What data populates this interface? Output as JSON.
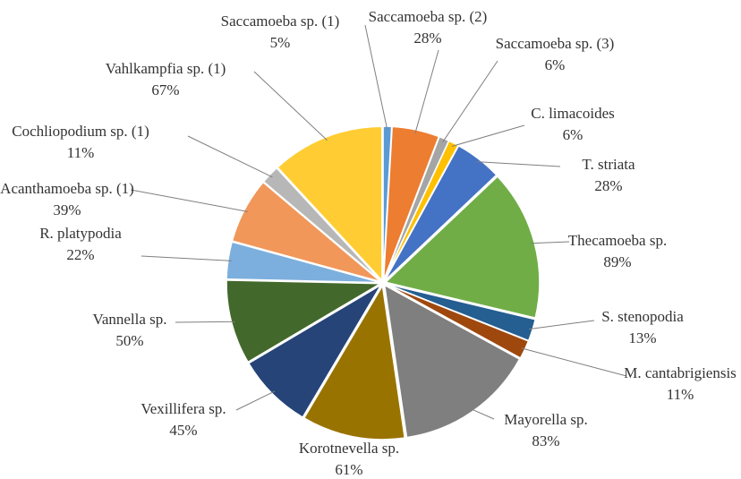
{
  "chart_data": {
    "type": "pie",
    "categories": [
      "Saccamoeba sp. (1)",
      "Saccamoeba sp. (2)",
      "Saccamoeba sp. (3)",
      "C. limacoides",
      "T. striata",
      "Thecamoeba sp.",
      "S. stenopodia",
      "M. cantabrigiensis",
      "Mayorella sp.",
      "Korotnevella sp.",
      "Vexillifera sp.",
      "Vannella sp.",
      "R. platypodia",
      "Acanthamoeba sp. (1)",
      "Cochliopodium sp. (1)",
      "Vahlkampfia sp. (1)"
    ],
    "values": [
      5,
      28,
      6,
      6,
      28,
      89,
      13,
      11,
      83,
      61,
      45,
      50,
      22,
      39,
      11,
      67
    ],
    "value_labels": [
      "5%",
      "28%",
      "6%",
      "6%",
      "28%",
      "89%",
      "13%",
      "11%",
      "83%",
      "61%",
      "45%",
      "50%",
      "22%",
      "39%",
      "11%",
      "67%"
    ],
    "colors": [
      "#5B9BD5",
      "#ED7D31",
      "#A5A5A5",
      "#FFC000",
      "#4472C4",
      "#70AD47",
      "#255E91",
      "#9E480E",
      "#7F7F7F",
      "#997300",
      "#264478",
      "#43682B",
      "#7CAFDD",
      "#F1975A",
      "#B7B7B7",
      "#FFCD33"
    ]
  }
}
